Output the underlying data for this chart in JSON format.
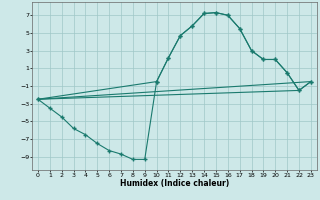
{
  "xlabel": "Humidex (Indice chaleur)",
  "xlim": [
    -0.5,
    23.5
  ],
  "ylim": [
    -10.5,
    8.5
  ],
  "yticks": [
    7,
    5,
    3,
    1,
    -1,
    -3,
    -5,
    -7,
    -9
  ],
  "xticks": [
    0,
    1,
    2,
    3,
    4,
    5,
    6,
    7,
    8,
    9,
    10,
    11,
    12,
    13,
    14,
    15,
    16,
    17,
    18,
    19,
    20,
    21,
    22,
    23
  ],
  "background_color": "#cde8e8",
  "grid_color": "#a0c8c8",
  "line_color": "#1a7a6e",
  "line1_x": [
    0,
    1,
    2,
    3,
    4,
    5,
    6,
    7,
    8,
    9,
    10,
    11,
    12,
    13,
    14,
    15,
    16,
    17,
    18,
    19,
    20,
    21,
    22,
    23
  ],
  "line1_y": [
    -2.5,
    -3.5,
    -4.5,
    -5.8,
    -6.5,
    -7.5,
    -8.3,
    -8.7,
    -9.3,
    -9.3,
    -0.5,
    2.2,
    4.7,
    5.8,
    7.2,
    7.3,
    7.0,
    5.5,
    3.0,
    2.0,
    2.0,
    0.5,
    -1.5,
    -0.5
  ],
  "line2_x": [
    0,
    10,
    11,
    12,
    13,
    14,
    15,
    16,
    17,
    18,
    19,
    20,
    21,
    22,
    23
  ],
  "line2_y": [
    -2.5,
    -0.5,
    2.2,
    4.7,
    5.8,
    7.2,
    7.3,
    7.0,
    5.5,
    3.0,
    2.0,
    2.0,
    0.5,
    -1.5,
    -0.5
  ],
  "line3_x": [
    0,
    23
  ],
  "line3_y": [
    -2.5,
    -0.5
  ],
  "line4_x": [
    0,
    22
  ],
  "line4_y": [
    -2.5,
    -1.5
  ],
  "marker": "+"
}
